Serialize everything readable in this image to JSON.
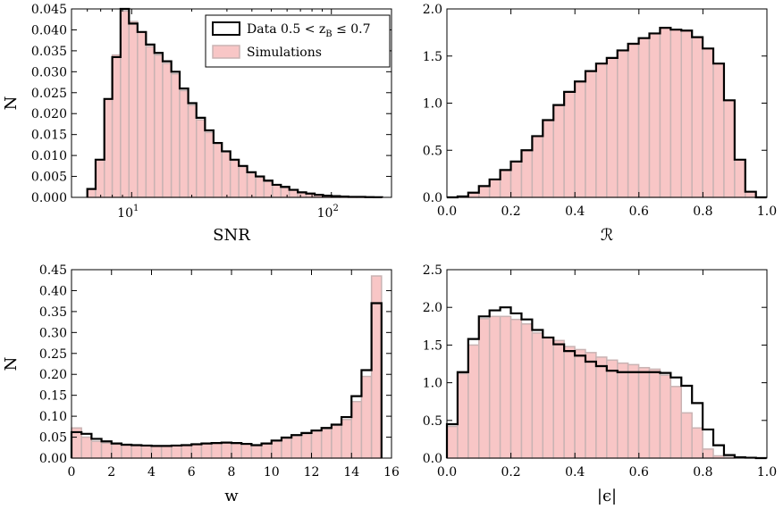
{
  "chart_data": [
    {
      "type": "bar",
      "panel": "top-left",
      "xscale": "log",
      "xlabel": "SNR",
      "ylabel": "N",
      "xlim": [
        5,
        200
      ],
      "ylim": [
        0,
        0.045
      ],
      "xticks": [
        {
          "v": 10,
          "base": "10",
          "exp": "1"
        },
        {
          "v": 100,
          "base": "10",
          "exp": "2"
        }
      ],
      "yticks": [
        0,
        0.005,
        0.01,
        0.015,
        0.02,
        0.025,
        0.03,
        0.035,
        0.04,
        0.045
      ],
      "ytick_labels": [
        "0.000",
        "0.005",
        "0.010",
        "0.015",
        "0.020",
        "0.025",
        "0.030",
        "0.035",
        "0.040",
        "0.045"
      ],
      "bin_edges": [
        6,
        6.6,
        7.3,
        8,
        8.8,
        9.7,
        10.7,
        11.8,
        13,
        14.3,
        15.8,
        17.4,
        19.2,
        21.1,
        23.3,
        25.7,
        28.3,
        31.2,
        34.4,
        37.9,
        41.8,
        46,
        50.7,
        55.9,
        61.6,
        67.9,
        74.8,
        82.5,
        90.9,
        100.2,
        110.4,
        121.7,
        134.1,
        147.8,
        162.9,
        179.5
      ],
      "series": [
        {
          "name": "Data 0.5 < z_B ≤ 0.7",
          "style": "step-outline",
          "values": [
            0.002,
            0.009,
            0.0235,
            0.0335,
            0.045,
            0.0415,
            0.0395,
            0.0365,
            0.0345,
            0.0325,
            0.03,
            0.026,
            0.0225,
            0.019,
            0.016,
            0.013,
            0.011,
            0.009,
            0.0075,
            0.006,
            0.005,
            0.004,
            0.003,
            0.0025,
            0.0018,
            0.0012,
            0.0009,
            0.0006,
            0.0004,
            0.0003,
            0.0002,
            0.0001,
            0.0001,
            5e-05,
            3e-05
          ]
        },
        {
          "name": "Simulations",
          "style": "filled",
          "values": [
            0.002,
            0.009,
            0.0235,
            0.034,
            0.0445,
            0.042,
            0.0395,
            0.036,
            0.034,
            0.032,
            0.0295,
            0.0255,
            0.022,
            0.0185,
            0.0155,
            0.0128,
            0.0108,
            0.0088,
            0.0073,
            0.0058,
            0.0048,
            0.0038,
            0.0029,
            0.0023,
            0.0017,
            0.0011,
            0.0008,
            0.0005,
            0.0004,
            0.0003,
            0.0002,
            0.0001,
            0.0001,
            5e-05,
            3e-05
          ]
        }
      ],
      "legend": {
        "placement": "top-right",
        "entries": [
          {
            "text": "Data 0.5 < z",
            "sub": "B",
            "tail": " ≤ 0.7",
            "style": "step-outline"
          },
          {
            "text": "Simulations",
            "sub": "",
            "tail": "",
            "style": "filled"
          }
        ]
      }
    },
    {
      "type": "bar",
      "panel": "top-right",
      "xscale": "linear",
      "xlabel": "ℛ",
      "ylabel": "",
      "xlim": [
        0,
        1
      ],
      "ylim": [
        0,
        2
      ],
      "xticks": [
        0,
        0.2,
        0.4,
        0.6,
        0.8,
        1.0
      ],
      "xtick_labels": [
        "0.0",
        "0.2",
        "0.4",
        "0.6",
        "0.8",
        "1.0"
      ],
      "yticks": [
        0,
        0.5,
        1,
        1.5,
        2
      ],
      "ytick_labels": [
        "0.0",
        "0.5",
        "1.0",
        "1.5",
        "2.0"
      ],
      "bin_start": 0.0,
      "bin_width": 0.0333,
      "series": [
        {
          "name": "Data 0.5 < z_B ≤ 0.7",
          "style": "step-outline",
          "values": [
            0.0,
            0.01,
            0.05,
            0.12,
            0.19,
            0.29,
            0.38,
            0.5,
            0.65,
            0.82,
            0.98,
            1.12,
            1.23,
            1.34,
            1.42,
            1.48,
            1.56,
            1.63,
            1.69,
            1.74,
            1.8,
            1.78,
            1.77,
            1.7,
            1.58,
            1.42,
            1.03,
            0.4,
            0.06,
            0.0
          ]
        },
        {
          "name": "Simulations",
          "style": "filled",
          "values": [
            0.0,
            0.01,
            0.05,
            0.12,
            0.19,
            0.29,
            0.38,
            0.5,
            0.65,
            0.82,
            0.98,
            1.12,
            1.23,
            1.34,
            1.42,
            1.48,
            1.56,
            1.63,
            1.69,
            1.74,
            1.8,
            1.78,
            1.77,
            1.7,
            1.58,
            1.42,
            1.03,
            0.4,
            0.06,
            0.0
          ]
        }
      ]
    },
    {
      "type": "bar",
      "panel": "bottom-left",
      "xscale": "linear",
      "xlabel": "w",
      "ylabel": "N",
      "xlim": [
        0,
        16
      ],
      "ylim": [
        0,
        0.45
      ],
      "xticks": [
        0,
        2,
        4,
        6,
        8,
        10,
        12,
        14,
        16
      ],
      "xtick_labels": [
        "0",
        "2",
        "4",
        "6",
        "8",
        "10",
        "12",
        "14",
        "16"
      ],
      "yticks": [
        0,
        0.05,
        0.1,
        0.15,
        0.2,
        0.25,
        0.3,
        0.35,
        0.4,
        0.45
      ],
      "ytick_labels": [
        "0.00",
        "0.05",
        "0.10",
        "0.15",
        "0.20",
        "0.25",
        "0.30",
        "0.35",
        "0.40",
        "0.45"
      ],
      "bin_start": 0.0,
      "bin_width": 0.5,
      "series": [
        {
          "name": "Data 0.5 < z_B ≤ 0.7",
          "style": "step-outline",
          "values": [
            0.062,
            0.058,
            0.046,
            0.04,
            0.035,
            0.032,
            0.031,
            0.03,
            0.029,
            0.029,
            0.03,
            0.031,
            0.033,
            0.035,
            0.036,
            0.037,
            0.036,
            0.034,
            0.031,
            0.035,
            0.042,
            0.049,
            0.055,
            0.06,
            0.066,
            0.072,
            0.08,
            0.098,
            0.148,
            0.21,
            0.37
          ]
        },
        {
          "name": "Simulations",
          "style": "filled",
          "values": [
            0.072,
            0.05,
            0.04,
            0.036,
            0.033,
            0.031,
            0.03,
            0.029,
            0.029,
            0.029,
            0.03,
            0.031,
            0.033,
            0.035,
            0.036,
            0.037,
            0.035,
            0.033,
            0.03,
            0.034,
            0.04,
            0.047,
            0.053,
            0.058,
            0.064,
            0.07,
            0.078,
            0.092,
            0.135,
            0.195,
            0.435
          ]
        }
      ]
    },
    {
      "type": "bar",
      "panel": "bottom-right",
      "xscale": "linear",
      "xlabel": "|ϵ|",
      "ylabel": "",
      "xlim": [
        0,
        1
      ],
      "ylim": [
        0,
        2.5
      ],
      "xticks": [
        0,
        0.2,
        0.4,
        0.6,
        0.8,
        1.0
      ],
      "xtick_labels": [
        "0.0",
        "0.2",
        "0.4",
        "0.6",
        "0.8",
        "1.0"
      ],
      "yticks": [
        0,
        0.5,
        1,
        1.5,
        2,
        2.5
      ],
      "ytick_labels": [
        "0.0",
        "0.5",
        "1.0",
        "1.5",
        "2.0",
        "2.5"
      ],
      "bin_start": 0.0,
      "bin_width": 0.0333,
      "series": [
        {
          "name": "Data 0.5 < z_B ≤ 0.7",
          "style": "step-outline",
          "values": [
            0.45,
            1.14,
            1.58,
            1.88,
            1.96,
            2.0,
            1.92,
            1.84,
            1.7,
            1.6,
            1.51,
            1.42,
            1.36,
            1.28,
            1.22,
            1.16,
            1.14,
            1.14,
            1.14,
            1.14,
            1.13,
            1.07,
            0.96,
            0.73,
            0.38,
            0.17,
            0.04,
            0.01,
            0.005,
            0.0
          ]
        },
        {
          "name": "Simulations",
          "style": "filled",
          "values": [
            0.42,
            1.12,
            1.5,
            1.85,
            1.88,
            1.88,
            1.84,
            1.78,
            1.66,
            1.6,
            1.56,
            1.48,
            1.44,
            1.4,
            1.34,
            1.3,
            1.26,
            1.24,
            1.2,
            1.18,
            1.1,
            0.95,
            0.6,
            0.4,
            0.12,
            0.03,
            0.01,
            0.0,
            0.0,
            0.0
          ]
        }
      ]
    }
  ]
}
